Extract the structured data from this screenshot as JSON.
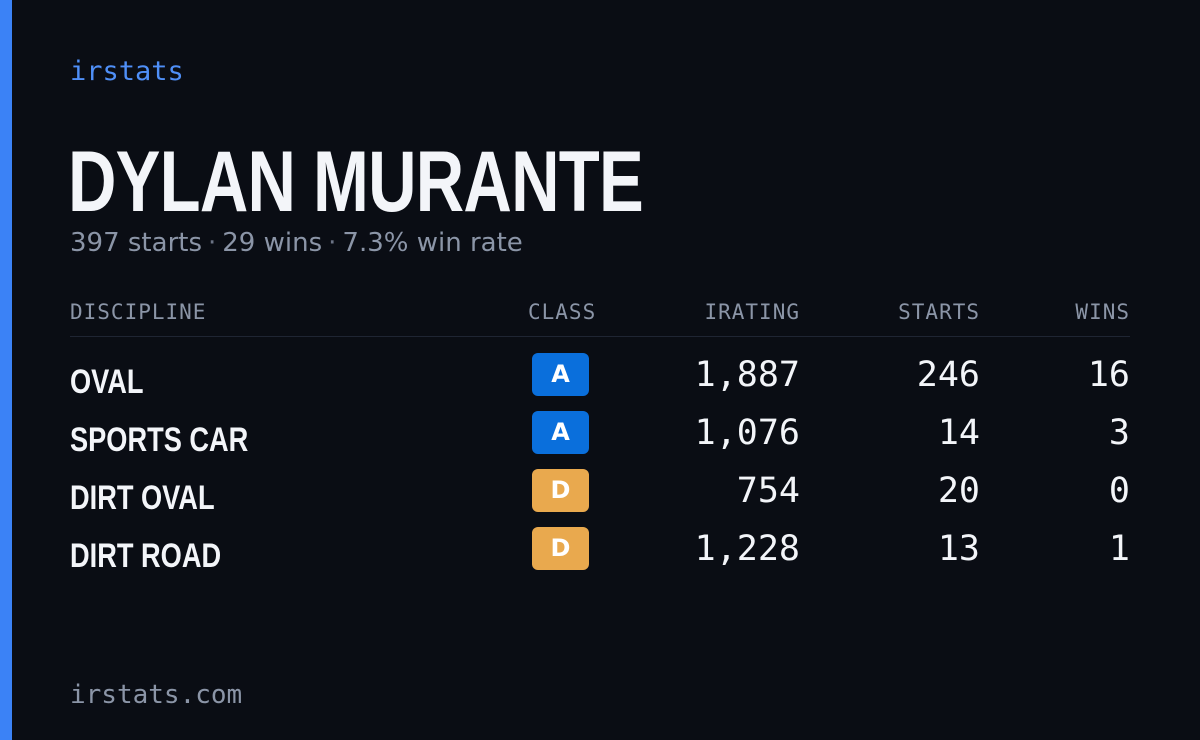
{
  "brand": "irstats",
  "accent_color": "#3b82f6",
  "driver": {
    "name": "DYLAN MURANTE",
    "starts_text": "397 starts",
    "wins_text": "29 wins",
    "win_rate_text": "7.3% win rate",
    "separator": "·"
  },
  "table": {
    "headers": {
      "discipline": "DISCIPLINE",
      "class": "CLASS",
      "irating": "IRATING",
      "starts": "STARTS",
      "wins": "WINS"
    },
    "rows": [
      {
        "discipline": "OVAL",
        "class": "A",
        "class_color": "#0a6fdc",
        "irating": "1,887",
        "starts": "246",
        "wins": "16"
      },
      {
        "discipline": "SPORTS CAR",
        "class": "A",
        "class_color": "#0a6fdc",
        "irating": "1,076",
        "starts": "14",
        "wins": "3"
      },
      {
        "discipline": "DIRT OVAL",
        "class": "D",
        "class_color": "#e9a94e",
        "irating": "754",
        "starts": "20",
        "wins": "0"
      },
      {
        "discipline": "DIRT ROAD",
        "class": "D",
        "class_color": "#e9a94e",
        "irating": "1,228",
        "starts": "13",
        "wins": "1"
      }
    ]
  },
  "footer": "irstats.com"
}
